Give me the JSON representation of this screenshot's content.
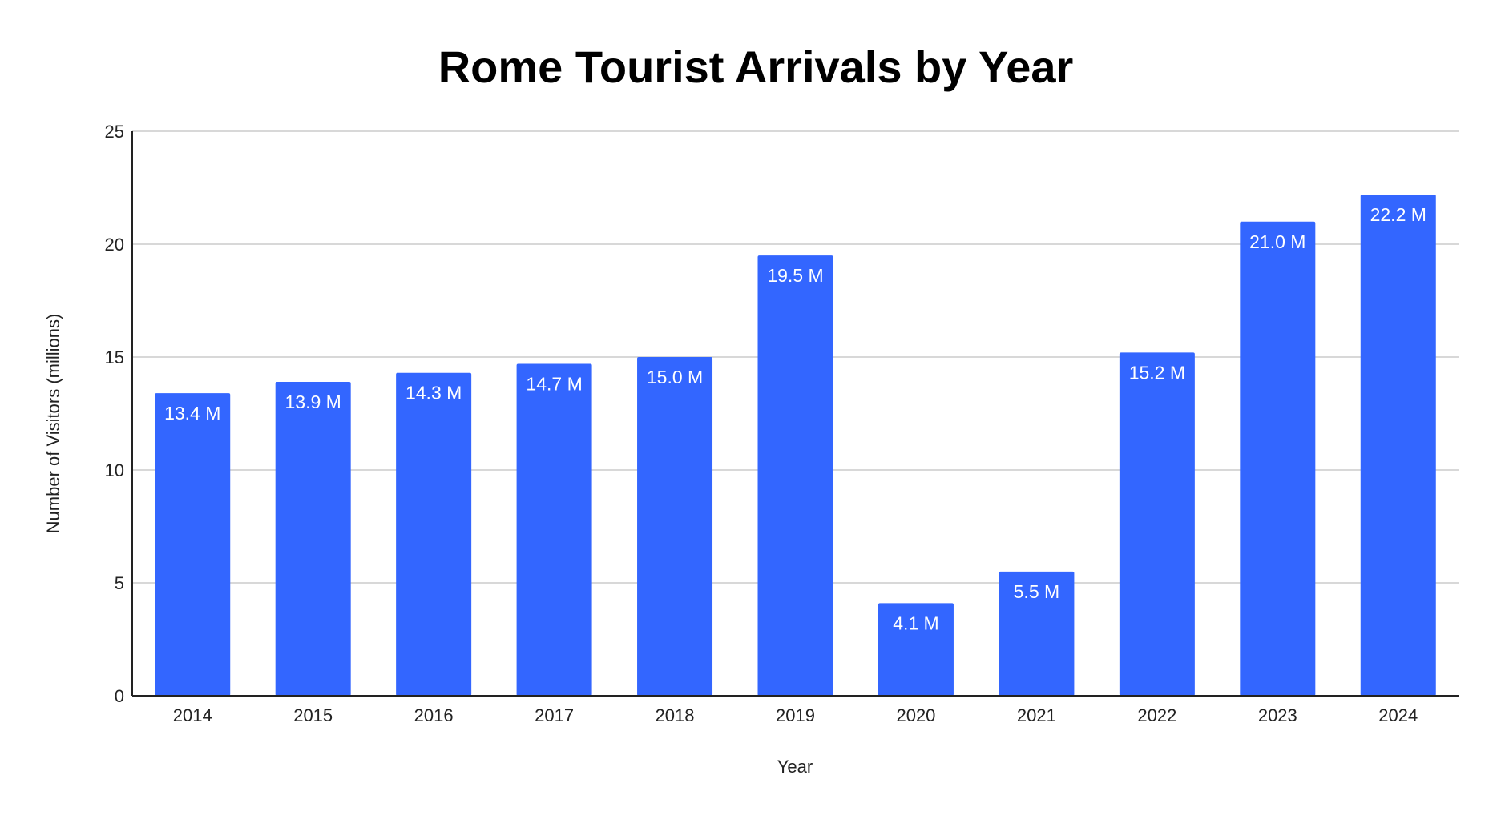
{
  "chart_data": {
    "type": "bar",
    "title": "Rome Tourist Arrivals by Year",
    "xlabel": "Year",
    "ylabel": "Number of Visitors (millions)",
    "ylim": [
      0,
      25
    ],
    "yticks": [
      0,
      5,
      10,
      15,
      20,
      25
    ],
    "grid": true,
    "legend": "none",
    "categories": [
      "2014",
      "2015",
      "2016",
      "2017",
      "2018",
      "2019",
      "2020",
      "2021",
      "2022",
      "2023",
      "2024"
    ],
    "values": [
      13.4,
      13.9,
      14.3,
      14.7,
      15.0,
      19.5,
      4.1,
      5.5,
      15.2,
      21.0,
      22.2
    ],
    "data_labels": [
      "13.4 M",
      "13.9 M",
      "14.3 M",
      "14.7 M",
      "15.0 M",
      "19.5 M",
      "4.1 M",
      "5.5 M",
      "15.2 M",
      "21.0 M",
      "22.2 M"
    ],
    "bar_color": "#3366ff"
  }
}
